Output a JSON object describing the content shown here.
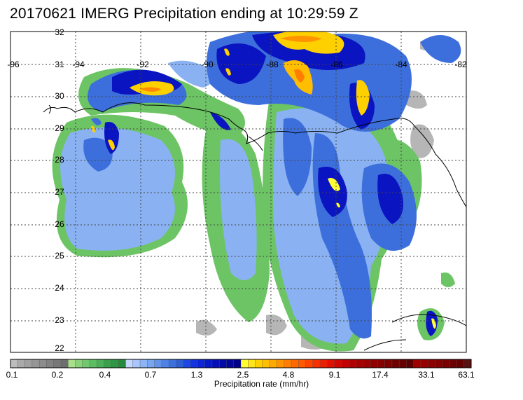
{
  "title": "20170621 IMERG Precipitation ending at 10:29:59 Z",
  "map": {
    "lon_labels": [
      "-96",
      "-94",
      "-92",
      "-90",
      "-88",
      "-86",
      "-84",
      "-82"
    ],
    "lat_labels": [
      "32",
      "31",
      "30",
      "29",
      "28",
      "27",
      "26",
      "25",
      "24",
      "23",
      "22"
    ],
    "lon_range": [
      -96,
      -82
    ],
    "lat_range": [
      22,
      32
    ],
    "grid": "dotted"
  },
  "colorbar": {
    "units_label": "Precipitation rate (mm/hr)",
    "tick_labels": [
      "0.1",
      "0.2",
      "0.4",
      "0.7",
      "1.3",
      "2.5",
      "4.8",
      "9.1",
      "17.4",
      "33.1",
      "63.1"
    ],
    "colors": [
      "#bdbdbd",
      "#aaaaaa",
      "#a0a0a0",
      "#969696",
      "#8c8c8c",
      "#828282",
      "#787878",
      "#6e6e6e",
      "#a8e08c",
      "#8ad27a",
      "#72c86c",
      "#5cbe62",
      "#4cb058",
      "#3aa04c",
      "#2e9644",
      "#258a3c",
      "#c2d6ff",
      "#a8c6fb",
      "#8db4f5",
      "#78a6f0",
      "#6494ea",
      "#4f82e4",
      "#3d70dc",
      "#2c5ed4",
      "#1e46e4",
      "#1434e0",
      "#0c26d6",
      "#0619c8",
      "#040fba",
      "#020aa8",
      "#02069a",
      "#020088",
      "#ffff33",
      "#ffe41a",
      "#ffd000",
      "#ffbe00",
      "#ffaa00",
      "#ff9400",
      "#ff7e00",
      "#ff6a00",
      "#ff5a00",
      "#ff4400",
      "#f73000",
      "#ec1e00",
      "#e01000",
      "#d20600",
      "#c40000",
      "#b20000",
      "#a80000",
      "#9c0000",
      "#900000",
      "#860000",
      "#7c0000",
      "#700000",
      "#660000",
      "#5a0000",
      "#a00000",
      "#960000",
      "#8c0000",
      "#820000",
      "#780000",
      "#6e0000",
      "#640000",
      "#5a1010"
    ]
  },
  "legend_colors": {
    "gray_light": "#bdbdbd",
    "green": "#72c86c",
    "light_blue": "#8db4f5",
    "blue": "#3d70dc",
    "dark_blue": "#040fba",
    "yellow": "#ffff33",
    "orange": "#ff9400",
    "red": "#e01000",
    "dark_red": "#7c0000"
  }
}
